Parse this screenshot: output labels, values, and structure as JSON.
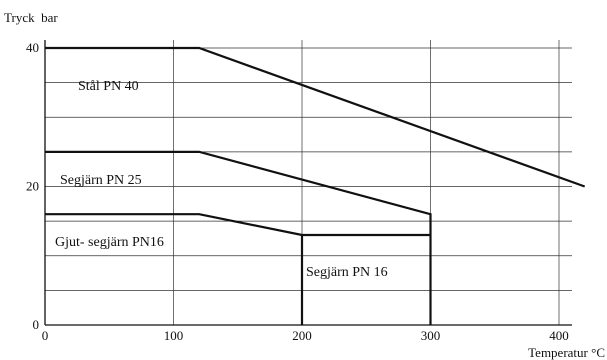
{
  "chart_data": {
    "type": "line",
    "ylabel": "Tryck  bar",
    "xlabel": "Temperatur °C",
    "xlim": [
      0,
      420
    ],
    "ylim": [
      0,
      40
    ],
    "x_ticks": [
      0,
      100,
      200,
      300,
      400
    ],
    "y_ticks": [
      0,
      20,
      40
    ],
    "grid": true,
    "grid_x": [
      0,
      100,
      200,
      300,
      400
    ],
    "grid_y": [
      0,
      5,
      10,
      15,
      20,
      25,
      30,
      35,
      40
    ],
    "series": [
      {
        "name": "Stål PN 40",
        "x": [
          0,
          120,
          420
        ],
        "y": [
          40,
          40,
          20
        ]
      },
      {
        "name": "Segjärn PN 25",
        "x": [
          0,
          120,
          300,
          300
        ],
        "y": [
          25,
          25,
          16,
          0
        ]
      },
      {
        "name": "Gjut- segjärn PN16",
        "x": [
          0,
          120,
          200,
          300
        ],
        "y": [
          16,
          16,
          13,
          13
        ]
      },
      {
        "name": "Segjärn PN 16",
        "x": [
          200,
          200
        ],
        "y": [
          13,
          0
        ]
      }
    ]
  }
}
